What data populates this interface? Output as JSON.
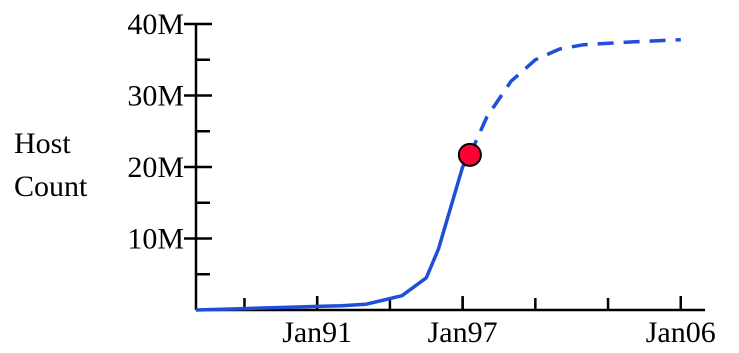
{
  "chart_data": {
    "type": "line",
    "title": "",
    "ylabel_lines": [
      "Host",
      "Count"
    ],
    "xlabel": "",
    "x_tick_labels": [
      {
        "value": 1991,
        "label": "Jan91"
      },
      {
        "value": 1997,
        "label": "Jan97"
      },
      {
        "value": 2006,
        "label": "Jan06"
      }
    ],
    "y_tick_labels": [
      {
        "value": 10,
        "label": "10M"
      },
      {
        "value": 20,
        "label": "20M"
      },
      {
        "value": 30,
        "label": "30M"
      },
      {
        "value": 40,
        "label": "40M"
      }
    ],
    "xlim": [
      1986,
      2007
    ],
    "ylim": [
      0,
      40
    ],
    "grid": false,
    "legend": "none",
    "series": [
      {
        "style": "solid",
        "color": "#1f4fd8",
        "points": [
          [
            1986,
            0
          ],
          [
            1988,
            0.2
          ],
          [
            1990,
            0.4
          ],
          [
            1991,
            0.5
          ],
          [
            1992,
            0.6
          ],
          [
            1993,
            0.8
          ],
          [
            1994.5,
            2
          ],
          [
            1995.5,
            4.5
          ],
          [
            1996,
            8.5
          ],
          [
            1997,
            20
          ],
          [
            1997.3,
            21.7
          ]
        ]
      },
      {
        "style": "dashed",
        "color": "#1f4fd8",
        "points": [
          [
            1997.3,
            21.7
          ],
          [
            1998,
            27
          ],
          [
            1999,
            32
          ],
          [
            2000,
            35
          ],
          [
            2001,
            36.5
          ],
          [
            2002,
            37.1
          ],
          [
            2004,
            37.5
          ],
          [
            2006,
            37.8
          ]
        ]
      }
    ],
    "marker": {
      "x": 1997.3,
      "y": 21.7,
      "color": "#ff0033"
    },
    "axis_color": "#000000"
  }
}
